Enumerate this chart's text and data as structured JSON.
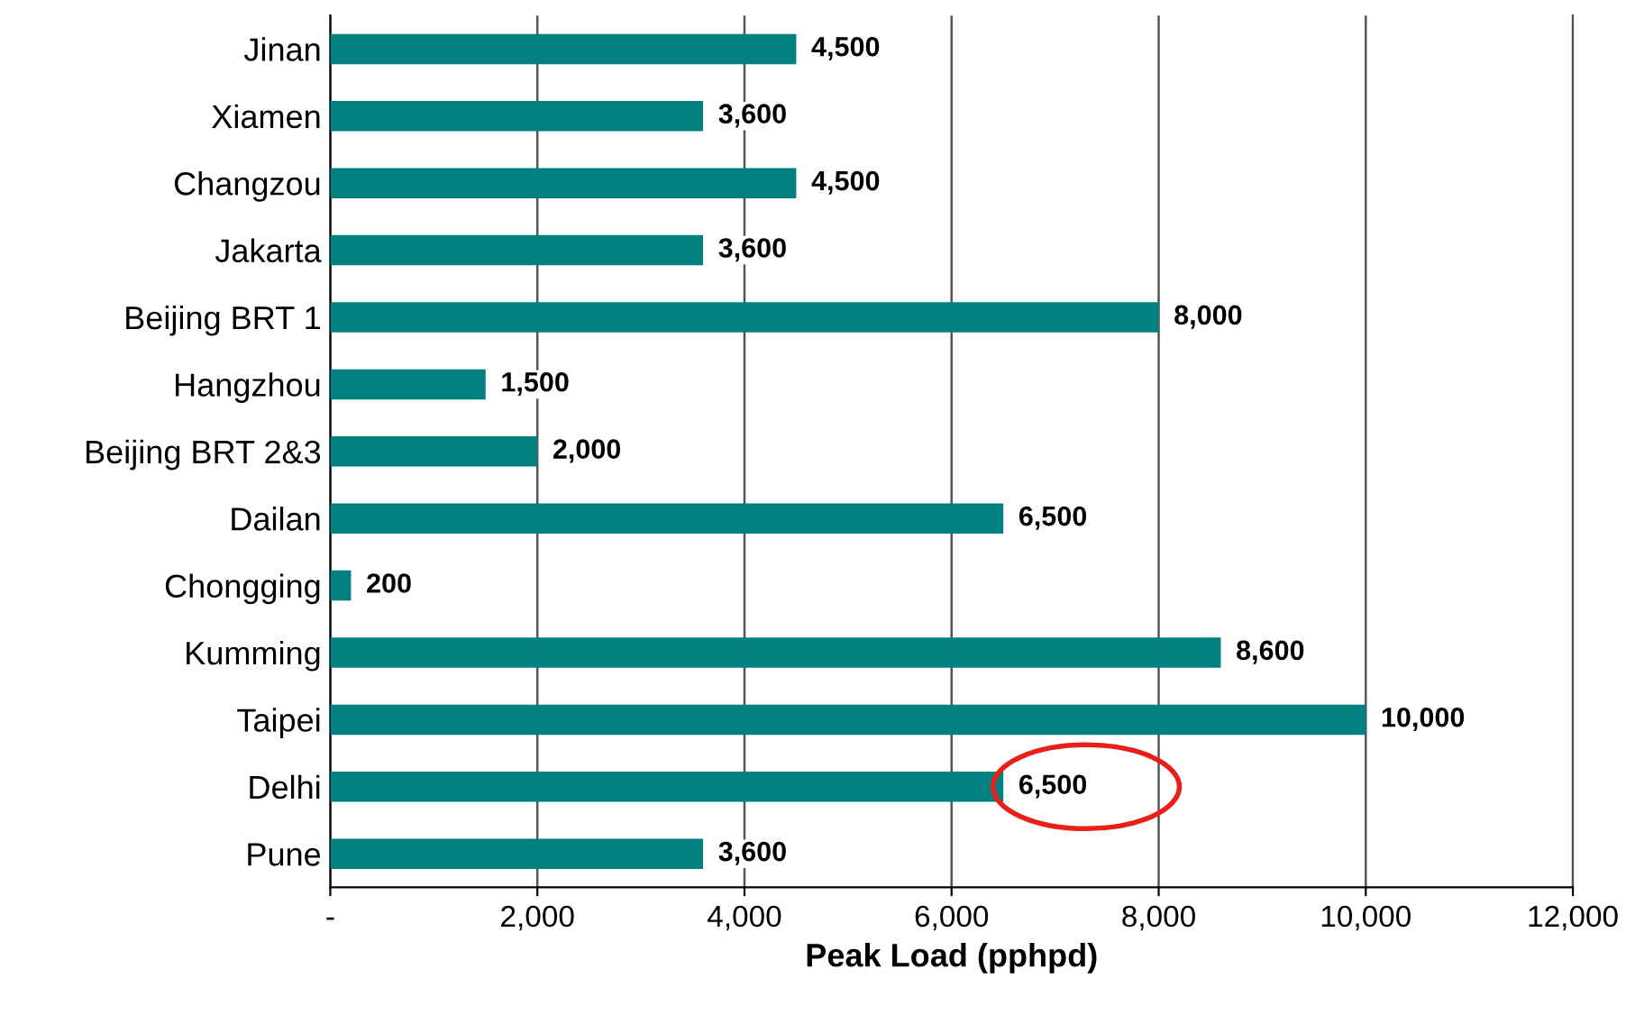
{
  "chart_data": {
    "type": "bar",
    "orientation": "horizontal",
    "xlabel": "Peak Load (pphpd)",
    "categories": [
      "Jinan",
      "Xiamen",
      "Changzou",
      "Jakarta",
      "Beijing BRT 1",
      "Hangzhou",
      "Beijing BRT 2&3",
      "Dailan",
      "Chongging",
      "Kumming",
      "Taipei",
      "Delhi",
      "Pune"
    ],
    "values": [
      4500,
      3600,
      4500,
      3600,
      8000,
      1500,
      2000,
      6500,
      200,
      8600,
      10000,
      6500,
      3600
    ],
    "value_labels": [
      "4,500",
      "3,600",
      "4,500",
      "3,600",
      "8,000",
      "1,500",
      "2,000",
      "6,500",
      "200",
      "8,600",
      "10,000",
      "6,500",
      "3,600"
    ],
    "color": "#008080",
    "xlim": [
      0,
      12000
    ],
    "xticks": [
      {
        "value": 0,
        "label": "-"
      },
      {
        "value": 2000,
        "label": "2,000"
      },
      {
        "value": 4000,
        "label": "4,000"
      },
      {
        "value": 6000,
        "label": "6,000"
      },
      {
        "value": 8000,
        "label": "8,000"
      },
      {
        "value": 10000,
        "label": "10,000"
      },
      {
        "value": 12000,
        "label": "12,000"
      }
    ],
    "grid": "x"
  }
}
